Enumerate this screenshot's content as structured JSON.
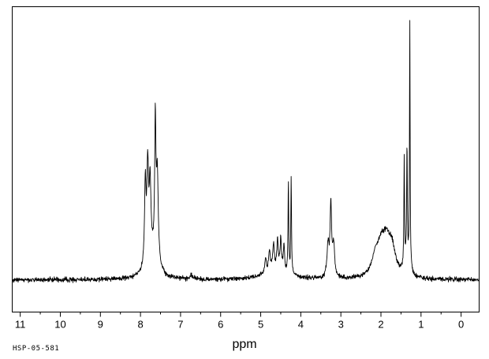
{
  "chart_data": {
    "type": "line",
    "subtype": "1H NMR spectrum",
    "title": "",
    "xlabel": "ppm",
    "ylabel": "",
    "sample_id": "HSP-05-581",
    "grid": false,
    "legend": false,
    "background_color": "#ffffff",
    "trace_color": "#000000",
    "axis_color": "#000000",
    "x_axis": {
      "left_ppm": 11.2,
      "right_ppm": -0.45,
      "tick_values": [
        11,
        10,
        9,
        8,
        7,
        6,
        5,
        4,
        3,
        2,
        1,
        0
      ],
      "tick_labels": [
        "11",
        "10",
        "9",
        "8",
        "7",
        "6",
        "5",
        "4",
        "3",
        "2",
        "1",
        "0"
      ],
      "minor_tick_step": 0.5
    },
    "baseline_frac": 0.105,
    "noise_frac": 0.0045,
    "peaks": [
      {
        "ppm": 7.88,
        "height": 0.3,
        "width": 0.022
      },
      {
        "ppm": 7.82,
        "height": 0.35,
        "width": 0.025
      },
      {
        "ppm": 7.76,
        "height": 0.27,
        "width": 0.025
      },
      {
        "ppm": 7.72,
        "height": 0.08,
        "width": 0.16
      },
      {
        "ppm": 7.63,
        "height": 0.5,
        "width": 0.018
      },
      {
        "ppm": 7.58,
        "height": 0.33,
        "width": 0.03
      },
      {
        "ppm": 6.72,
        "height": 0.013,
        "width": 0.06
      },
      {
        "ppm": 4.88,
        "height": 0.05,
        "width": 0.025
      },
      {
        "ppm": 4.78,
        "height": 0.07,
        "width": 0.025
      },
      {
        "ppm": 4.68,
        "height": 0.09,
        "width": 0.022
      },
      {
        "ppm": 4.6,
        "height": 0.045,
        "width": 0.3
      },
      {
        "ppm": 4.58,
        "height": 0.1,
        "width": 0.02
      },
      {
        "ppm": 4.5,
        "height": 0.11,
        "width": 0.018
      },
      {
        "ppm": 4.42,
        "height": 0.09,
        "width": 0.018
      },
      {
        "ppm": 4.31,
        "height": 0.34,
        "width": 0.01
      },
      {
        "ppm": 4.24,
        "height": 0.37,
        "width": 0.01
      },
      {
        "ppm": 3.32,
        "height": 0.12,
        "width": 0.03
      },
      {
        "ppm": 3.25,
        "height": 0.27,
        "width": 0.022
      },
      {
        "ppm": 3.18,
        "height": 0.12,
        "width": 0.03
      },
      {
        "ppm": 2.15,
        "height": 0.06,
        "width": 0.1
      },
      {
        "ppm": 2.0,
        "height": 0.09,
        "width": 0.12
      },
      {
        "ppm": 1.86,
        "height": 0.12,
        "width": 0.13
      },
      {
        "ppm": 1.72,
        "height": 0.08,
        "width": 0.1
      },
      {
        "ppm": 1.42,
        "height": 0.4,
        "width": 0.01
      },
      {
        "ppm": 1.35,
        "height": 0.44,
        "width": 0.01
      },
      {
        "ppm": 1.35,
        "height": 0.05,
        "width": 0.08
      },
      {
        "ppm": 1.28,
        "height": 0.93,
        "width": 0.009
      }
    ]
  }
}
